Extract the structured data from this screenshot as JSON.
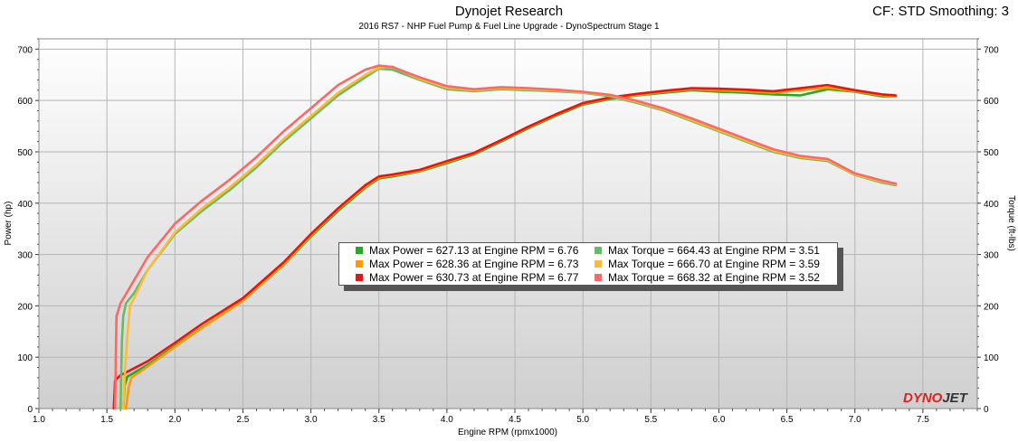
{
  "header": {
    "title": "Dynojet Research",
    "subtitle": "2016 RS7 - NHP Fuel Pump & Fuel Line Upgrade - DynoSpectrum Stage 1",
    "settings": "CF: STD Smoothing: 3"
  },
  "brand": {
    "logo_text": "DYNOJET"
  },
  "chart_data": {
    "type": "line",
    "title": "Dynojet Research",
    "subtitle": "2016 RS7 - NHP Fuel Pump & Fuel Line Upgrade - DynoSpectrum Stage 1",
    "xlabel": "Engine RPM (rpmx1000)",
    "ylabel": "Power (hp)",
    "y2label": "Torque (ft-lbs)",
    "xlim": [
      1.0,
      7.9
    ],
    "ylim": [
      0,
      720
    ],
    "y2lim": [
      0,
      720
    ],
    "x_ticks": [
      "1.0",
      "1.5",
      "2.0",
      "2.5",
      "3.0",
      "3.5",
      "4.0",
      "4.5",
      "5.0",
      "5.5",
      "6.0",
      "6.5",
      "7.0",
      "7.5"
    ],
    "y_ticks": [
      "0",
      "100",
      "200",
      "300",
      "400",
      "500",
      "600",
      "700"
    ],
    "grid": true,
    "legend_position": "center",
    "series": [
      {
        "name": "Max Power = 627.13 at Engine RPM = 6.76",
        "kind": "power",
        "color": "#22aa22",
        "x": [
          1.62,
          1.63,
          1.65,
          1.8,
          2.0,
          2.2,
          2.5,
          2.8,
          3.0,
          3.2,
          3.4,
          3.5,
          3.6,
          3.8,
          4.0,
          4.2,
          4.4,
          4.6,
          4.8,
          5.0,
          5.2,
          5.4,
          5.6,
          5.8,
          6.0,
          6.2,
          6.4,
          6.6,
          6.8,
          7.0,
          7.2,
          7.3
        ],
        "y": [
          0,
          45,
          62,
          85,
          122,
          158,
          210,
          280,
          335,
          385,
          430,
          448,
          452,
          462,
          478,
          495,
          520,
          546,
          570,
          592,
          603,
          610,
          615,
          620,
          617,
          615,
          612,
          610,
          622,
          617,
          608,
          608
        ]
      },
      {
        "name": "Max Power = 628.36 at Engine RPM = 6.73",
        "kind": "power",
        "color": "#ff9900",
        "x": [
          1.64,
          1.66,
          1.68,
          1.8,
          2.0,
          2.2,
          2.5,
          2.8,
          3.0,
          3.2,
          3.4,
          3.5,
          3.6,
          3.8,
          4.0,
          4.2,
          4.4,
          4.6,
          4.8,
          5.0,
          5.2,
          5.4,
          5.6,
          5.8,
          6.0,
          6.2,
          6.4,
          6.6,
          6.8,
          7.0,
          7.2,
          7.3
        ],
        "y": [
          0,
          40,
          60,
          82,
          120,
          157,
          210,
          281,
          337,
          388,
          432,
          450,
          454,
          463,
          480,
          497,
          522,
          548,
          572,
          594,
          605,
          611,
          617,
          622,
          620,
          618,
          615,
          620,
          625,
          618,
          610,
          608
        ]
      },
      {
        "name": "Max Power = 630.73 at Engine RPM = 6.77",
        "kind": "power",
        "color": "#ee1111",
        "x": [
          1.55,
          1.56,
          1.6,
          1.8,
          2.0,
          2.2,
          2.5,
          2.8,
          3.0,
          3.2,
          3.4,
          3.5,
          3.6,
          3.8,
          4.0,
          4.2,
          4.4,
          4.6,
          4.8,
          5.0,
          5.2,
          5.4,
          5.6,
          5.8,
          6.0,
          6.2,
          6.4,
          6.6,
          6.8,
          7.0,
          7.2,
          7.3
        ],
        "y": [
          0,
          55,
          65,
          92,
          128,
          165,
          215,
          285,
          340,
          390,
          435,
          452,
          456,
          465,
          482,
          498,
          523,
          549,
          573,
          595,
          606,
          613,
          619,
          624,
          623,
          621,
          618,
          624,
          630,
          620,
          612,
          610
        ]
      },
      {
        "name": "Max Torque = 664.43 at Engine RPM = 3.51",
        "kind": "torque",
        "color": "#66bb66",
        "x": [
          1.6,
          1.61,
          1.62,
          1.64,
          1.7,
          1.8,
          2.0,
          2.2,
          2.4,
          2.6,
          2.8,
          3.0,
          3.2,
          3.4,
          3.5,
          3.6,
          3.8,
          4.0,
          4.2,
          4.4,
          4.6,
          4.8,
          5.0,
          5.2,
          5.4,
          5.6,
          5.8,
          6.0,
          6.2,
          6.4,
          6.6,
          6.8,
          7.0,
          7.2,
          7.3
        ],
        "y": [
          0,
          130,
          180,
          205,
          225,
          270,
          340,
          385,
          425,
          470,
          520,
          565,
          610,
          645,
          662,
          660,
          640,
          622,
          618,
          622,
          620,
          618,
          615,
          608,
          595,
          580,
          560,
          540,
          520,
          500,
          488,
          482,
          455,
          440,
          435
        ]
      },
      {
        "name": "Max Torque = 666.70 at Engine RPM = 3.59",
        "kind": "torque",
        "color": "#ffbb33",
        "x": [
          1.62,
          1.63,
          1.65,
          1.67,
          1.7,
          1.8,
          2.0,
          2.2,
          2.4,
          2.6,
          2.8,
          3.0,
          3.2,
          3.4,
          3.5,
          3.6,
          3.8,
          4.0,
          4.2,
          4.4,
          4.6,
          4.8,
          5.0,
          5.2,
          5.4,
          5.6,
          5.8,
          6.0,
          6.2,
          6.4,
          6.6,
          6.8,
          7.0,
          7.2,
          7.3
        ],
        "y": [
          0,
          60,
          140,
          200,
          215,
          270,
          343,
          390,
          430,
          475,
          525,
          570,
          615,
          650,
          664,
          666,
          642,
          625,
          620,
          624,
          622,
          620,
          616,
          610,
          597,
          582,
          562,
          542,
          522,
          502,
          490,
          484,
          456,
          442,
          437
        ]
      },
      {
        "name": "Max Torque = 668.32 at Engine RPM = 3.52",
        "kind": "torque",
        "color": "#ff6666",
        "x": [
          1.56,
          1.57,
          1.6,
          1.7,
          1.8,
          2.0,
          2.2,
          2.4,
          2.6,
          2.8,
          3.0,
          3.2,
          3.4,
          3.5,
          3.6,
          3.8,
          4.0,
          4.2,
          4.4,
          4.6,
          4.8,
          5.0,
          5.2,
          5.4,
          5.6,
          5.8,
          6.0,
          6.2,
          6.4,
          6.6,
          6.8,
          7.0,
          7.2,
          7.3
        ],
        "y": [
          0,
          180,
          205,
          250,
          295,
          360,
          405,
          445,
          490,
          540,
          585,
          630,
          660,
          668,
          665,
          645,
          628,
          622,
          626,
          624,
          621,
          617,
          611,
          599,
          584,
          565,
          545,
          525,
          505,
          492,
          486,
          458,
          444,
          438
        ]
      }
    ]
  }
}
